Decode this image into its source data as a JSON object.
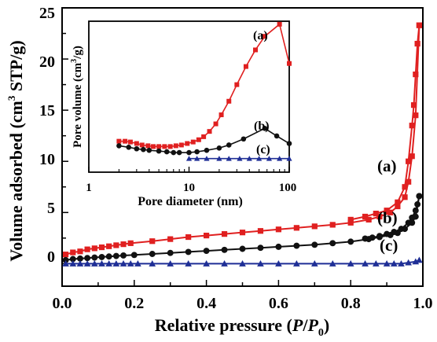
{
  "chart_data": [
    {
      "id": "main",
      "type": "line",
      "xlabel": "Relative pressure (P/P0)",
      "xlabel_parts": {
        "pre": "Relative pressure (",
        "p": "P",
        "slash": "/",
        "p0": "P",
        "sub": "0",
        "post": ")"
      },
      "ylabel": "Volume adsorbed (cm3 STP/g)",
      "ylabel_parts": {
        "pre": "Volume adsorbed (cm",
        "sup": "3",
        "post": " STP/g)"
      },
      "xlim": [
        0.0,
        1.0
      ],
      "ylim": [
        -2.2,
        25
      ],
      "x_ticks": [
        "0.0",
        "0.2",
        "0.4",
        "0.6",
        "0.8",
        "1.0"
      ],
      "y_ticks": [
        "0",
        "5",
        "10",
        "15",
        "20",
        "25"
      ],
      "labels": [
        "(a)",
        "(b)",
        "(c)"
      ],
      "series": [
        {
          "label": "(a)",
          "color": "#e02020",
          "marker": "square",
          "adsorption": [
            [
              0.01,
              0.9
            ],
            [
              0.03,
              1.1
            ],
            [
              0.05,
              1.2
            ],
            [
              0.07,
              1.4
            ],
            [
              0.09,
              1.5
            ],
            [
              0.11,
              1.6
            ],
            [
              0.13,
              1.7
            ],
            [
              0.15,
              1.8
            ],
            [
              0.17,
              1.9
            ],
            [
              0.19,
              2.0
            ],
            [
              0.25,
              2.2
            ],
            [
              0.3,
              2.4
            ],
            [
              0.35,
              2.6
            ],
            [
              0.4,
              2.75
            ],
            [
              0.45,
              2.9
            ],
            [
              0.5,
              3.05
            ],
            [
              0.55,
              3.2
            ],
            [
              0.6,
              3.35
            ],
            [
              0.65,
              3.5
            ],
            [
              0.7,
              3.65
            ],
            [
              0.75,
              3.8
            ],
            [
              0.8,
              4.0
            ],
            [
              0.85,
              4.3
            ],
            [
              0.88,
              4.6
            ],
            [
              0.91,
              5.0
            ],
            [
              0.93,
              5.6
            ],
            [
              0.95,
              6.5
            ],
            [
              0.96,
              8.0
            ],
            [
              0.97,
              10.5
            ],
            [
              0.98,
              14.5
            ],
            [
              0.99,
              23.3
            ]
          ],
          "desorption": [
            [
              0.99,
              23.3
            ],
            [
              0.985,
              21.5
            ],
            [
              0.98,
              18.5
            ],
            [
              0.975,
              15.5
            ],
            [
              0.97,
              13.5
            ],
            [
              0.96,
              10.0
            ],
            [
              0.95,
              7.5
            ],
            [
              0.93,
              6.0
            ],
            [
              0.9,
              5.2
            ],
            [
              0.87,
              4.9
            ],
            [
              0.84,
              4.6
            ],
            [
              0.8,
              4.3
            ]
          ]
        },
        {
          "label": "(b)",
          "color": "#111111",
          "marker": "circle",
          "adsorption": [
            [
              0.01,
              0.35
            ],
            [
              0.03,
              0.45
            ],
            [
              0.05,
              0.5
            ],
            [
              0.07,
              0.55
            ],
            [
              0.09,
              0.6
            ],
            [
              0.11,
              0.65
            ],
            [
              0.13,
              0.7
            ],
            [
              0.15,
              0.75
            ],
            [
              0.17,
              0.8
            ],
            [
              0.2,
              0.85
            ],
            [
              0.25,
              0.95
            ],
            [
              0.3,
              1.05
            ],
            [
              0.35,
              1.15
            ],
            [
              0.4,
              1.25
            ],
            [
              0.45,
              1.35
            ],
            [
              0.5,
              1.45
            ],
            [
              0.55,
              1.55
            ],
            [
              0.6,
              1.65
            ],
            [
              0.65,
              1.75
            ],
            [
              0.7,
              1.85
            ],
            [
              0.75,
              2.0
            ],
            [
              0.8,
              2.15
            ],
            [
              0.85,
              2.4
            ],
            [
              0.88,
              2.6
            ],
            [
              0.91,
              2.8
            ],
            [
              0.93,
              3.0
            ],
            [
              0.95,
              3.4
            ],
            [
              0.97,
              4.0
            ],
            [
              0.98,
              4.6
            ],
            [
              0.99,
              6.6
            ]
          ],
          "desorption": [
            [
              0.99,
              6.6
            ],
            [
              0.985,
              5.8
            ],
            [
              0.98,
              5.2
            ],
            [
              0.97,
              4.5
            ],
            [
              0.96,
              4.0
            ],
            [
              0.94,
              3.4
            ],
            [
              0.92,
              3.1
            ],
            [
              0.9,
              2.9
            ],
            [
              0.88,
              2.7
            ],
            [
              0.86,
              2.55
            ],
            [
              0.84,
              2.45
            ]
          ]
        },
        {
          "label": "(c)",
          "color": "#1f2f96",
          "marker": "triangle",
          "adsorption": [
            [
              0.01,
              0.0
            ],
            [
              0.03,
              0.0
            ],
            [
              0.05,
              0.0
            ],
            [
              0.07,
              0.0
            ],
            [
              0.09,
              0.0
            ],
            [
              0.11,
              0.0
            ],
            [
              0.13,
              0.0
            ],
            [
              0.15,
              0.0
            ],
            [
              0.17,
              0.0
            ],
            [
              0.19,
              0.0
            ],
            [
              0.21,
              0.0
            ],
            [
              0.25,
              0.0
            ],
            [
              0.3,
              0.0
            ],
            [
              0.35,
              0.0
            ],
            [
              0.4,
              0.0
            ],
            [
              0.45,
              0.0
            ],
            [
              0.5,
              0.0
            ],
            [
              0.55,
              0.0
            ],
            [
              0.6,
              0.0
            ],
            [
              0.65,
              0.0
            ],
            [
              0.7,
              0.0
            ],
            [
              0.75,
              0.0
            ],
            [
              0.8,
              0.0
            ],
            [
              0.84,
              0.0
            ],
            [
              0.87,
              0.0
            ],
            [
              0.9,
              0.0
            ],
            [
              0.92,
              0.0
            ],
            [
              0.94,
              0.0
            ],
            [
              0.96,
              0.1
            ],
            [
              0.98,
              0.2
            ],
            [
              0.99,
              0.35
            ]
          ],
          "desorption": []
        }
      ]
    },
    {
      "id": "inset",
      "type": "line",
      "xscale": "log",
      "xlabel": "Pore diameter (nm)",
      "ylabel": "Pore volume (cm3/g)",
      "ylabel_parts": {
        "pre": "Pore volume (cm",
        "sup": "3",
        "post": "/g)"
      },
      "xlim": [
        1,
        100
      ],
      "ylim": [
        0,
        1
      ],
      "x_ticks": [
        "1",
        "10",
        "100"
      ],
      "labels": [
        "(a)",
        "(b)",
        "(c)"
      ],
      "series": [
        {
          "label": "(a)",
          "color": "#e02020",
          "marker": "square",
          "points": [
            [
              2.0,
              0.205
            ],
            [
              2.3,
              0.205
            ],
            [
              2.6,
              0.2
            ],
            [
              3.0,
              0.19
            ],
            [
              3.4,
              0.18
            ],
            [
              3.9,
              0.175
            ],
            [
              4.4,
              0.17
            ],
            [
              5.0,
              0.17
            ],
            [
              5.7,
              0.17
            ],
            [
              6.5,
              0.17
            ],
            [
              7.4,
              0.175
            ],
            [
              8.4,
              0.18
            ],
            [
              9.6,
              0.19
            ],
            [
              11,
              0.2
            ],
            [
              12.5,
              0.215
            ],
            [
              14,
              0.235
            ],
            [
              16,
              0.27
            ],
            [
              18.5,
              0.32
            ],
            [
              21,
              0.38
            ],
            [
              25,
              0.47
            ],
            [
              30,
              0.58
            ],
            [
              37,
              0.7
            ],
            [
              46,
              0.81
            ],
            [
              57,
              0.9
            ],
            [
              80,
              0.98
            ],
            [
              100,
              0.72
            ]
          ]
        },
        {
          "label": "(b)",
          "color": "#111111",
          "marker": "circle",
          "points": [
            [
              2.0,
              0.175
            ],
            [
              2.5,
              0.165
            ],
            [
              3.0,
              0.155
            ],
            [
              3.5,
              0.15
            ],
            [
              4.0,
              0.145
            ],
            [
              5.0,
              0.14
            ],
            [
              6.0,
              0.135
            ],
            [
              7.0,
              0.13
            ],
            [
              8.0,
              0.13
            ],
            [
              10,
              0.13
            ],
            [
              12,
              0.135
            ],
            [
              15,
              0.145
            ],
            [
              20,
              0.16
            ],
            [
              25,
              0.18
            ],
            [
              35,
              0.22
            ],
            [
              57,
              0.29
            ],
            [
              75,
              0.24
            ],
            [
              100,
              0.19
            ]
          ]
        },
        {
          "label": "(c)",
          "color": "#1f2f96",
          "marker": "triangle",
          "points": [
            [
              10,
              0.09
            ],
            [
              12,
              0.09
            ],
            [
              15,
              0.09
            ],
            [
              20,
              0.09
            ],
            [
              25,
              0.09
            ],
            [
              32,
              0.09
            ],
            [
              40,
              0.09
            ],
            [
              50,
              0.09
            ],
            [
              63,
              0.09
            ],
            [
              80,
              0.09
            ],
            [
              100,
              0.09
            ]
          ]
        }
      ]
    }
  ]
}
